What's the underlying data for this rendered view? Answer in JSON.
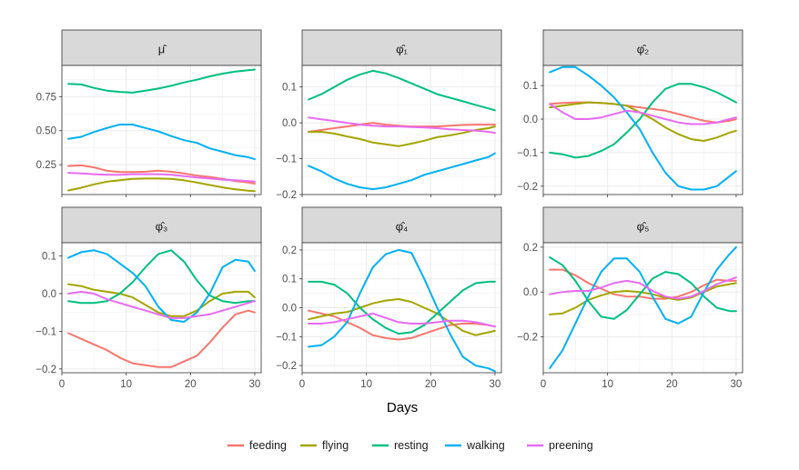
{
  "chart_data": {
    "type": "line",
    "xlabel": "Days",
    "x": [
      1,
      3,
      5,
      7,
      9,
      11,
      13,
      15,
      17,
      19,
      21,
      23,
      25,
      27,
      29,
      30
    ],
    "xlim": [
      0,
      31
    ],
    "xticks": [
      0,
      10,
      20,
      30
    ],
    "colors": {
      "feeding": "#F8766D",
      "flying": "#A3A500",
      "resting": "#00BF7D",
      "walking": "#00B0F6",
      "preening": "#E76BF3"
    },
    "legend": {
      "position": "bottom",
      "items": [
        "feeding",
        "flying",
        "resting",
        "walking",
        "preening"
      ]
    },
    "grid": true,
    "panels": [
      {
        "title": "μ̂",
        "ylim": [
          0.03,
          0.98
        ],
        "yticks": [
          0.25,
          0.5,
          0.75
        ],
        "ytick_labels": [
          "0.25",
          "0.50",
          "0.75"
        ],
        "series": [
          {
            "name": "feeding",
            "values": [
              0.24,
              0.245,
              0.23,
              0.205,
              0.195,
              0.195,
              0.198,
              0.205,
              0.198,
              0.185,
              0.17,
              0.16,
              0.145,
              0.13,
              0.118,
              0.11
            ]
          },
          {
            "name": "flying",
            "values": [
              0.06,
              0.08,
              0.105,
              0.125,
              0.135,
              0.145,
              0.148,
              0.148,
              0.145,
              0.135,
              0.118,
              0.1,
              0.083,
              0.068,
              0.058,
              0.055
            ]
          },
          {
            "name": "resting",
            "values": [
              0.845,
              0.84,
              0.815,
              0.795,
              0.785,
              0.78,
              0.795,
              0.81,
              0.83,
              0.855,
              0.875,
              0.9,
              0.92,
              0.935,
              0.945,
              0.95
            ]
          },
          {
            "name": "walking",
            "values": [
              0.44,
              0.455,
              0.49,
              0.52,
              0.545,
              0.545,
              0.52,
              0.495,
              0.46,
              0.43,
              0.41,
              0.37,
              0.345,
              0.32,
              0.305,
              0.29
            ]
          },
          {
            "name": "preening",
            "values": [
              0.19,
              0.185,
              0.18,
              0.175,
              0.175,
              0.18,
              0.18,
              0.18,
              0.175,
              0.165,
              0.155,
              0.148,
              0.14,
              0.135,
              0.13,
              0.125
            ]
          }
        ]
      },
      {
        "title": "φ̂₁",
        "ylim": [
          -0.2,
          0.16
        ],
        "yticks": [
          -0.2,
          -0.1,
          0.0,
          0.1
        ],
        "ytick_labels": [
          "−0.2",
          "−0.1",
          "0.0",
          "0.1"
        ],
        "series": [
          {
            "name": "feeding",
            "values": [
              -0.025,
              -0.02,
              -0.015,
              -0.01,
              -0.005,
              0.0,
              -0.005,
              -0.008,
              -0.01,
              -0.01,
              -0.01,
              -0.008,
              -0.006,
              -0.005,
              -0.005,
              -0.005
            ]
          },
          {
            "name": "flying",
            "values": [
              -0.025,
              -0.025,
              -0.03,
              -0.038,
              -0.045,
              -0.055,
              -0.06,
              -0.065,
              -0.058,
              -0.05,
              -0.04,
              -0.035,
              -0.028,
              -0.02,
              -0.015,
              -0.01
            ]
          },
          {
            "name": "resting",
            "values": [
              0.065,
              0.08,
              0.1,
              0.12,
              0.135,
              0.145,
              0.138,
              0.125,
              0.11,
              0.095,
              0.08,
              0.07,
              0.06,
              0.05,
              0.04,
              0.035
            ]
          },
          {
            "name": "walking",
            "values": [
              -0.12,
              -0.135,
              -0.155,
              -0.17,
              -0.18,
              -0.185,
              -0.18,
              -0.17,
              -0.16,
              -0.145,
              -0.135,
              -0.125,
              -0.115,
              -0.105,
              -0.095,
              -0.085
            ]
          },
          {
            "name": "preening",
            "values": [
              0.015,
              0.01,
              0.005,
              0.0,
              -0.005,
              -0.008,
              -0.01,
              -0.01,
              -0.012,
              -0.013,
              -0.015,
              -0.018,
              -0.02,
              -0.022,
              -0.025,
              -0.028
            ]
          }
        ]
      },
      {
        "title": "φ̂₂",
        "ylim": [
          -0.225,
          0.16
        ],
        "yticks": [
          -0.2,
          -0.1,
          0.0,
          0.1
        ],
        "ytick_labels": [
          "−0.2",
          "−0.1",
          "0.0",
          "0.1"
        ],
        "series": [
          {
            "name": "feeding",
            "values": [
              0.045,
              0.048,
              0.05,
              0.05,
              0.048,
              0.045,
              0.04,
              0.035,
              0.03,
              0.025,
              0.015,
              0.005,
              -0.005,
              -0.01,
              -0.005,
              0.0
            ]
          },
          {
            "name": "flying",
            "values": [
              0.035,
              0.04,
              0.045,
              0.05,
              0.048,
              0.045,
              0.04,
              0.02,
              0.0,
              -0.025,
              -0.045,
              -0.06,
              -0.065,
              -0.055,
              -0.04,
              -0.035
            ]
          },
          {
            "name": "resting",
            "values": [
              -0.1,
              -0.105,
              -0.115,
              -0.11,
              -0.095,
              -0.075,
              -0.04,
              0.0,
              0.05,
              0.09,
              0.105,
              0.105,
              0.095,
              0.08,
              0.06,
              0.05
            ]
          },
          {
            "name": "walking",
            "values": [
              0.14,
              0.155,
              0.155,
              0.13,
              0.1,
              0.065,
              0.02,
              -0.03,
              -0.1,
              -0.16,
              -0.2,
              -0.21,
              -0.21,
              -0.2,
              -0.17,
              -0.155
            ]
          },
          {
            "name": "preening",
            "values": [
              0.045,
              0.02,
              0.0,
              0.0,
              0.005,
              0.015,
              0.025,
              0.02,
              0.01,
              0.0,
              -0.01,
              -0.015,
              -0.015,
              -0.01,
              0.0,
              0.005
            ]
          }
        ]
      },
      {
        "title": "φ̂₃",
        "ylim": [
          -0.21,
          0.135
        ],
        "yticks": [
          -0.2,
          -0.1,
          0.0,
          0.1
        ],
        "ytick_labels": [
          "−0.2",
          "−0.1",
          "0.0",
          "0.1"
        ],
        "series": [
          {
            "name": "feeding",
            "values": [
              -0.105,
              -0.12,
              -0.135,
              -0.15,
              -0.17,
              -0.185,
              -0.19,
              -0.195,
              -0.195,
              -0.18,
              -0.165,
              -0.13,
              -0.09,
              -0.055,
              -0.045,
              -0.05
            ]
          },
          {
            "name": "flying",
            "values": [
              0.025,
              0.02,
              0.01,
              0.005,
              0.0,
              -0.01,
              -0.03,
              -0.05,
              -0.06,
              -0.06,
              -0.045,
              -0.02,
              0.0,
              0.005,
              0.005,
              -0.01
            ]
          },
          {
            "name": "resting",
            "values": [
              -0.02,
              -0.025,
              -0.025,
              -0.02,
              0.0,
              0.03,
              0.07,
              0.105,
              0.115,
              0.085,
              0.035,
              -0.005,
              -0.02,
              -0.025,
              -0.02,
              -0.02
            ]
          },
          {
            "name": "walking",
            "values": [
              0.095,
              0.11,
              0.115,
              0.105,
              0.08,
              0.055,
              0.02,
              -0.035,
              -0.07,
              -0.075,
              -0.05,
              0.0,
              0.07,
              0.09,
              0.085,
              0.06
            ]
          },
          {
            "name": "preening",
            "values": [
              0.0,
              0.005,
              0.0,
              -0.015,
              -0.025,
              -0.035,
              -0.045,
              -0.055,
              -0.065,
              -0.065,
              -0.06,
              -0.055,
              -0.045,
              -0.035,
              -0.025,
              -0.02
            ]
          }
        ]
      },
      {
        "title": "φ̂₄",
        "ylim": [
          -0.225,
          0.225
        ],
        "yticks": [
          -0.2,
          -0.1,
          0.0,
          0.1,
          0.2
        ],
        "ytick_labels": [
          "−0.2",
          "−0.1",
          "0.0",
          "0.1",
          "0.2"
        ],
        "series": [
          {
            "name": "feeding",
            "values": [
              -0.01,
              -0.02,
              -0.03,
              -0.05,
              -0.07,
              -0.095,
              -0.105,
              -0.11,
              -0.105,
              -0.09,
              -0.075,
              -0.06,
              -0.055,
              -0.055,
              -0.06,
              -0.065
            ]
          },
          {
            "name": "flying",
            "values": [
              -0.04,
              -0.03,
              -0.02,
              -0.015,
              0.0,
              0.015,
              0.025,
              0.03,
              0.02,
              0.0,
              -0.02,
              -0.05,
              -0.08,
              -0.095,
              -0.085,
              -0.08
            ]
          },
          {
            "name": "resting",
            "values": [
              0.09,
              0.09,
              0.08,
              0.05,
              0.0,
              -0.04,
              -0.07,
              -0.09,
              -0.085,
              -0.06,
              -0.02,
              0.02,
              0.06,
              0.085,
              0.09,
              0.09
            ]
          },
          {
            "name": "walking",
            "values": [
              -0.135,
              -0.13,
              -0.1,
              -0.05,
              0.05,
              0.14,
              0.185,
              0.2,
              0.19,
              0.1,
              0.0,
              -0.09,
              -0.17,
              -0.2,
              -0.21,
              -0.22
            ]
          },
          {
            "name": "preening",
            "values": [
              -0.055,
              -0.055,
              -0.05,
              -0.04,
              -0.03,
              -0.02,
              -0.035,
              -0.05,
              -0.055,
              -0.055,
              -0.05,
              -0.045,
              -0.045,
              -0.05,
              -0.06,
              -0.065
            ]
          }
        ]
      },
      {
        "title": "φ̂₅",
        "ylim": [
          -0.36,
          0.22
        ],
        "yticks": [
          -0.2,
          0.0,
          0.2
        ],
        "ytick_labels": [
          "−0.2",
          "0.0",
          "0.2"
        ],
        "series": [
          {
            "name": "feeding",
            "values": [
              0.1,
              0.1,
              0.075,
              0.04,
              0.015,
              -0.01,
              -0.02,
              -0.02,
              -0.03,
              -0.03,
              -0.02,
              0.0,
              0.03,
              0.055,
              0.05,
              0.05
            ]
          },
          {
            "name": "flying",
            "values": [
              -0.1,
              -0.095,
              -0.07,
              -0.035,
              -0.015,
              0.0,
              0.005,
              0.0,
              -0.01,
              -0.025,
              -0.035,
              -0.025,
              0.0,
              0.025,
              0.035,
              0.04
            ]
          },
          {
            "name": "resting",
            "values": [
              0.155,
              0.12,
              0.05,
              -0.04,
              -0.11,
              -0.12,
              -0.08,
              -0.01,
              0.06,
              0.09,
              0.08,
              0.04,
              -0.02,
              -0.07,
              -0.085,
              -0.085
            ]
          },
          {
            "name": "walking",
            "values": [
              -0.34,
              -0.26,
              -0.14,
              -0.02,
              0.09,
              0.15,
              0.15,
              0.09,
              -0.02,
              -0.12,
              -0.14,
              -0.11,
              0.0,
              0.1,
              0.17,
              0.2
            ]
          },
          {
            "name": "preening",
            "values": [
              -0.01,
              0.0,
              0.005,
              0.005,
              0.02,
              0.04,
              0.05,
              0.04,
              0.005,
              -0.02,
              -0.03,
              -0.02,
              0.005,
              0.035,
              0.055,
              0.065
            ]
          }
        ]
      }
    ]
  }
}
